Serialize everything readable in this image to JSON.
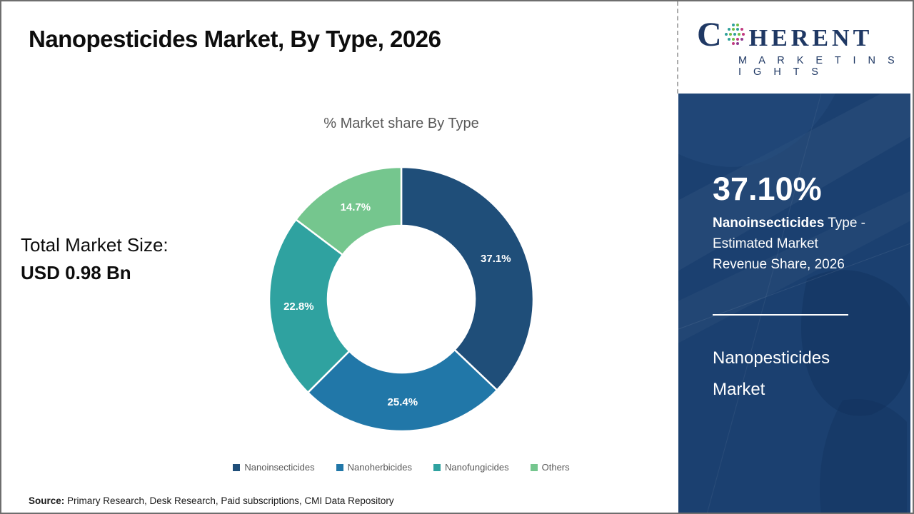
{
  "header": {
    "title": "Nanopesticides Market, By Type, 2026"
  },
  "chart_data": {
    "type": "pie",
    "subtype": "donut",
    "title": "% Market share By Type",
    "categories": [
      "Nanoinsecticides",
      "Nanoherbicides",
      "Nanofungicides",
      "Others"
    ],
    "values": [
      37.1,
      25.4,
      22.8,
      14.7
    ],
    "slice_labels": [
      "37.1%",
      "25.4%",
      "22.8%",
      "14.7%"
    ],
    "colors": [
      "#1F4E79",
      "#2177A8",
      "#2FA2A0",
      "#75C68E"
    ],
    "start_angle_deg": 0,
    "clockwise": true,
    "outer_radius": 185,
    "inner_radius": 103,
    "legend_position": "bottom"
  },
  "totals": {
    "label": "Total Market Size:",
    "value": "USD 0.98 Bn"
  },
  "source": {
    "label": "Source:",
    "text": " Primary Research, Desk Research, Paid subscriptions, CMI Data Repository"
  },
  "logo": {
    "brand_c": "C",
    "brand_rest": "HERENT",
    "subtitle": "M A R K E T   I N S I G H T S"
  },
  "panel": {
    "stat_value": "37.10%",
    "desc_line1_bold": "Nanoinsecticides",
    "desc_line1_rest": " Type -",
    "desc_line2": "Estimated Market",
    "desc_line3": "Revenue Share, 2026",
    "title_line1": "Nanopesticides",
    "title_line2": "Market",
    "background_color": "#1b4070"
  }
}
